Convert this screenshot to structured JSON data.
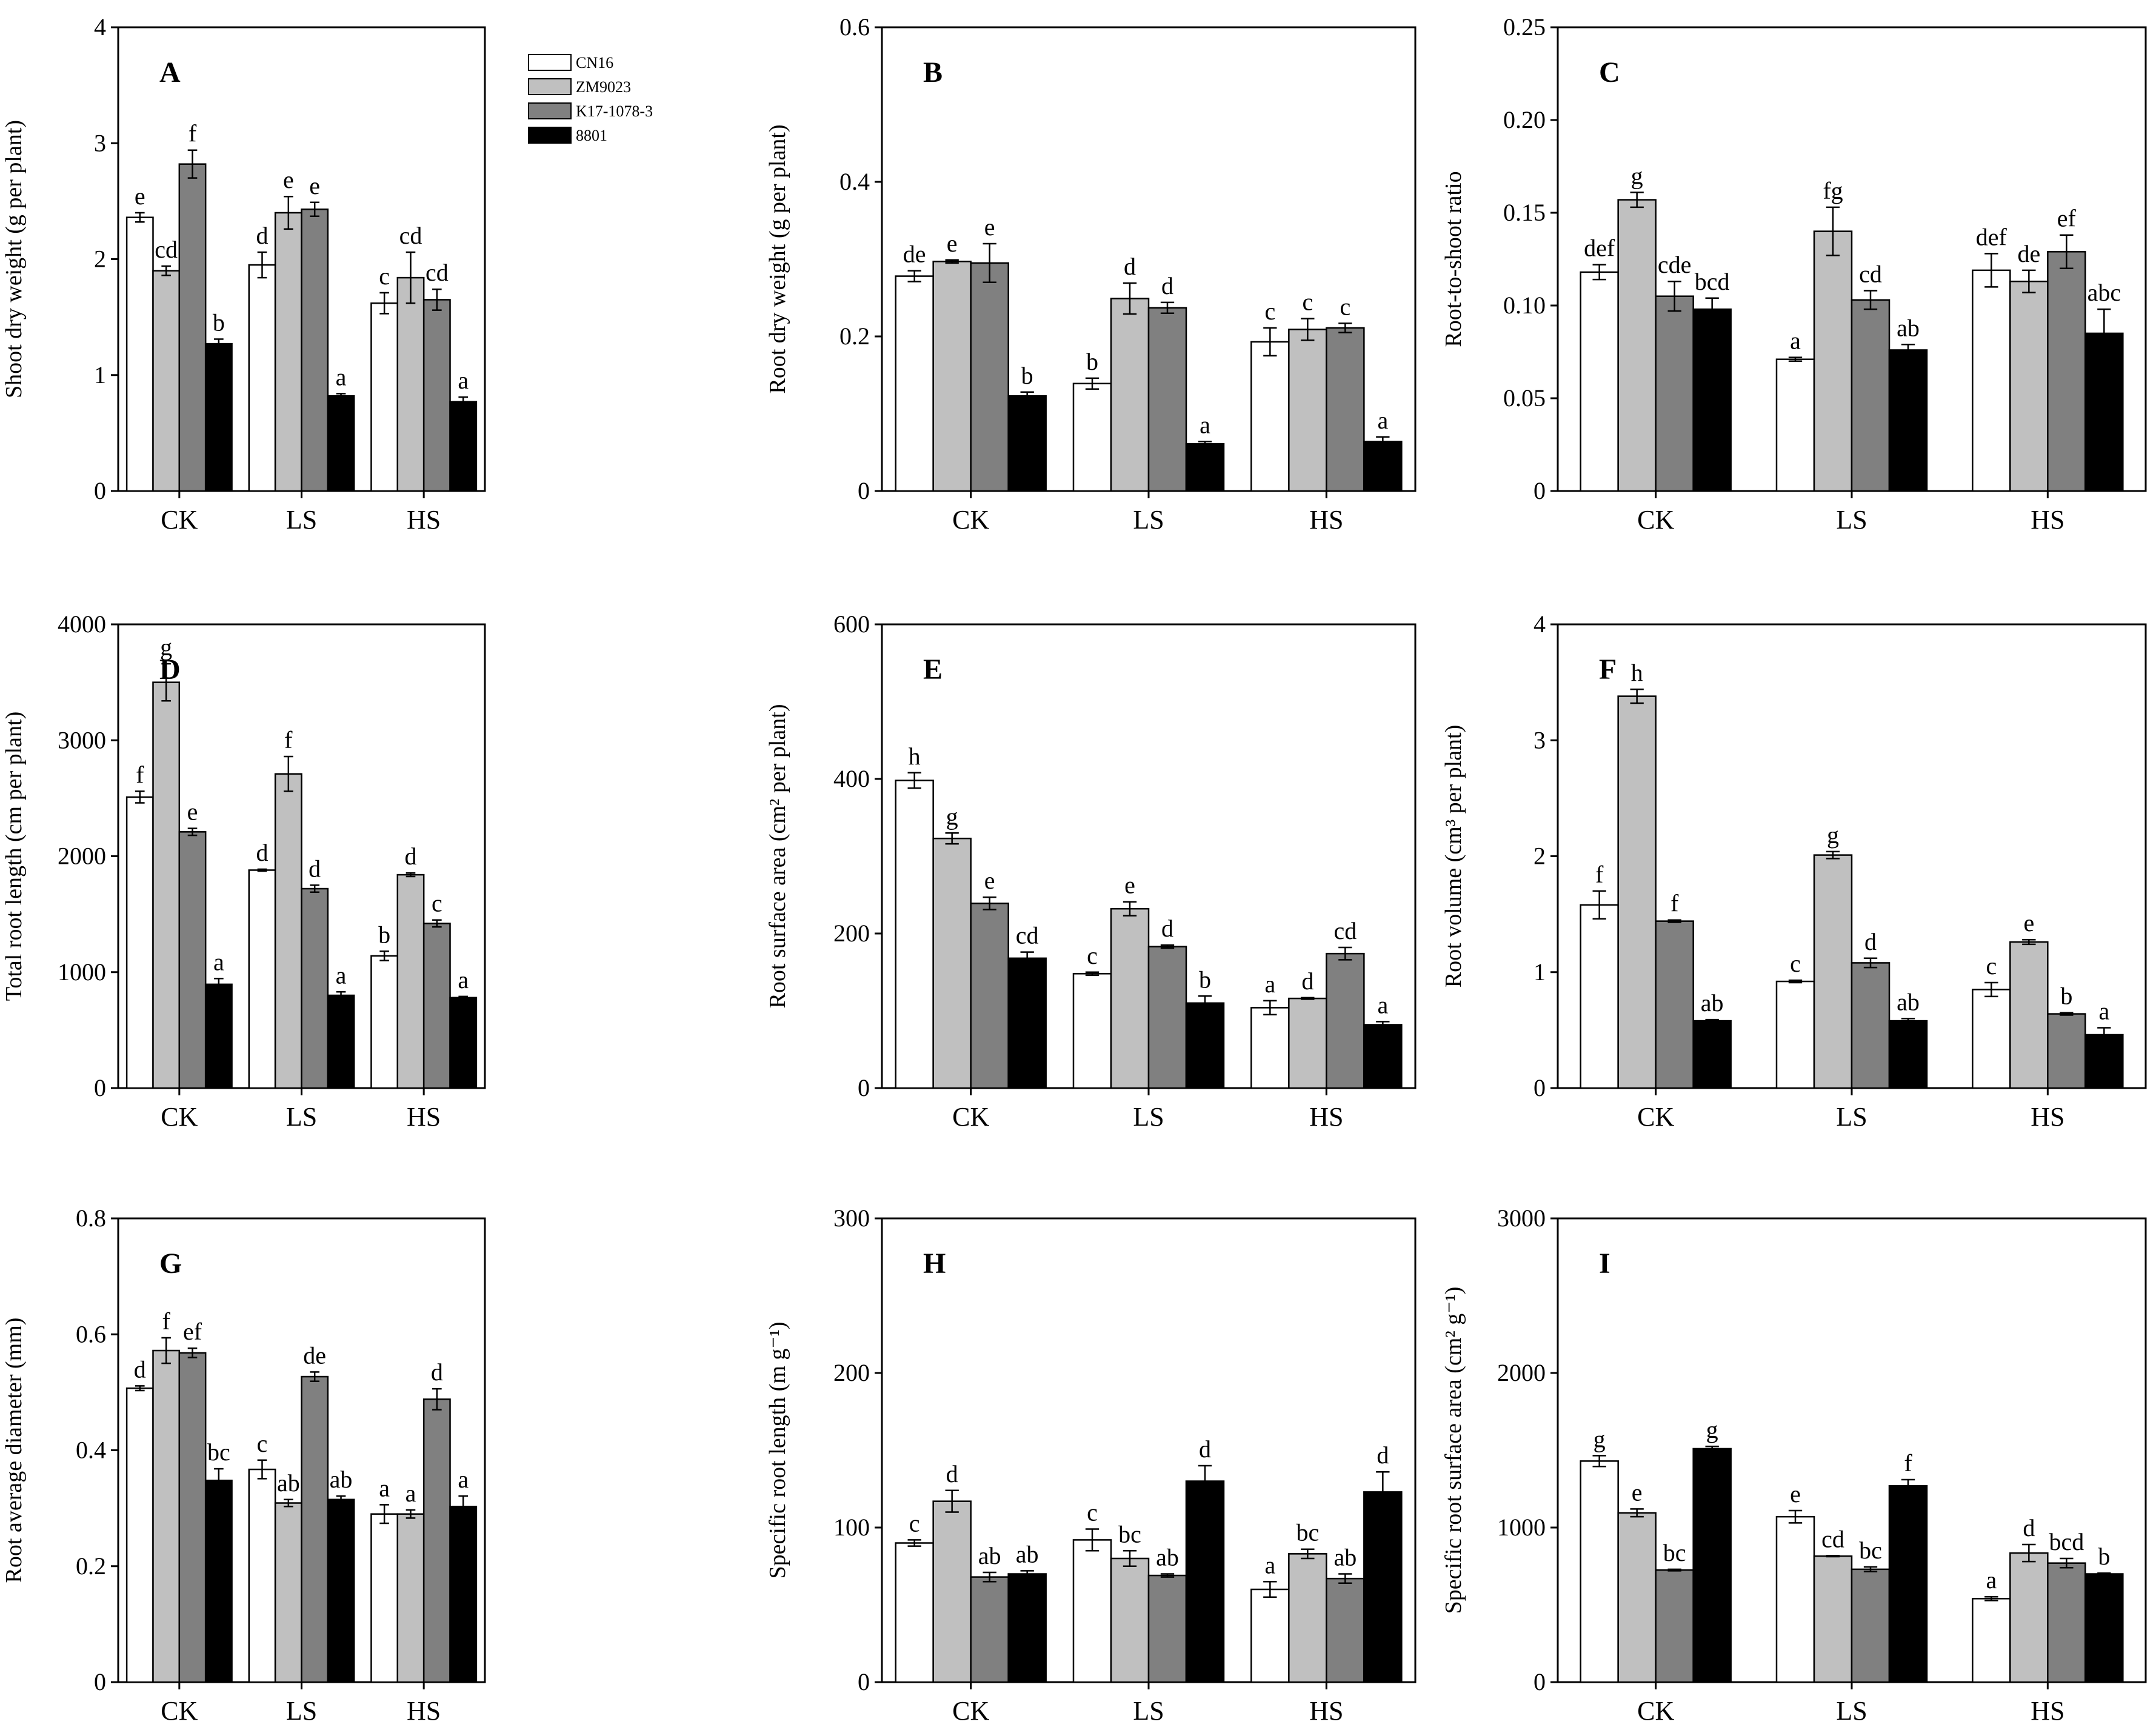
{
  "figure": {
    "legend": [
      "CN16",
      "ZM9023",
      "K17-1078-3",
      "8801"
    ],
    "groups": [
      "CK",
      "LS",
      "HS"
    ]
  },
  "colors": {
    "CN16": "#ffffff",
    "ZM9023": "#c0c0c0",
    "K17-1078-3": "#808080",
    "8801": "#000000",
    "axis": "#000000"
  },
  "chart_data": [
    {
      "panel": "A",
      "type": "bar",
      "ylabel": "Shoot dry weight (g per plant)",
      "ylim": [
        0,
        4
      ],
      "yticks": [
        "0",
        "1",
        "2",
        "3",
        "4"
      ],
      "categories": [
        "CK",
        "LS",
        "HS"
      ],
      "series": [
        {
          "name": "CN16",
          "values": [
            2.36,
            1.95,
            1.62
          ],
          "errors": [
            0.04,
            0.11,
            0.09
          ],
          "letters": [
            "e",
            "d",
            "c"
          ]
        },
        {
          "name": "ZM9023",
          "values": [
            1.9,
            2.4,
            1.84
          ],
          "errors": [
            0.04,
            0.14,
            0.22
          ],
          "letters": [
            "cd",
            "e",
            "cd"
          ]
        },
        {
          "name": "K17-1078-3",
          "values": [
            2.82,
            2.43,
            1.65
          ],
          "errors": [
            0.12,
            0.06,
            0.09
          ],
          "letters": [
            "f",
            "e",
            "cd"
          ]
        },
        {
          "name": "8801",
          "values": [
            1.27,
            0.82,
            0.77
          ],
          "errors": [
            0.04,
            0.02,
            0.04
          ],
          "letters": [
            "b",
            "a",
            "a"
          ]
        }
      ]
    },
    {
      "panel": "B",
      "type": "bar",
      "ylabel": "Root dry weight (g per plant)",
      "ylim": [
        0,
        0.6
      ],
      "yticks": [
        "0",
        "0.2",
        "0.4",
        "0.6"
      ],
      "categories": [
        "CK",
        "LS",
        "HS"
      ],
      "series": [
        {
          "name": "CN16",
          "values": [
            0.278,
            0.139,
            0.193
          ],
          "errors": [
            0.007,
            0.007,
            0.018
          ],
          "letters": [
            "de",
            "b",
            "c"
          ]
        },
        {
          "name": "ZM9023",
          "values": [
            0.297,
            0.249,
            0.209
          ],
          "errors": [
            0.002,
            0.02,
            0.014
          ],
          "letters": [
            "e",
            "d",
            "c"
          ]
        },
        {
          "name": "K17-1078-3",
          "values": [
            0.295,
            0.237,
            0.211
          ],
          "errors": [
            0.025,
            0.007,
            0.006
          ],
          "letters": [
            "e",
            "d",
            "c"
          ]
        },
        {
          "name": "8801",
          "values": [
            0.123,
            0.061,
            0.064
          ],
          "errors": [
            0.005,
            0.003,
            0.006
          ],
          "letters": [
            "b",
            "a",
            "a"
          ]
        }
      ]
    },
    {
      "panel": "C",
      "type": "bar",
      "ylabel": "Root-to-shoot ratio",
      "ylim": [
        0,
        0.25
      ],
      "yticks": [
        "0",
        "0.05",
        "0.10",
        "0.15",
        "0.20",
        "0.25"
      ],
      "categories": [
        "CK",
        "LS",
        "HS"
      ],
      "series": [
        {
          "name": "CN16",
          "values": [
            0.118,
            0.071,
            0.119
          ],
          "errors": [
            0.004,
            0.001,
            0.009
          ],
          "letters": [
            "def",
            "a",
            "def"
          ]
        },
        {
          "name": "ZM9023",
          "values": [
            0.157,
            0.14,
            0.113
          ],
          "errors": [
            0.004,
            0.013,
            0.006
          ],
          "letters": [
            "g",
            "fg",
            "de"
          ]
        },
        {
          "name": "K17-1078-3",
          "values": [
            0.105,
            0.103,
            0.129
          ],
          "errors": [
            0.008,
            0.005,
            0.009
          ],
          "letters": [
            "cde",
            "cd",
            "ef"
          ]
        },
        {
          "name": "8801",
          "values": [
            0.098,
            0.076,
            0.085
          ],
          "errors": [
            0.006,
            0.003,
            0.013
          ],
          "letters": [
            "bcd",
            "ab",
            "abc"
          ]
        }
      ]
    },
    {
      "panel": "D",
      "type": "bar",
      "ylabel": "Total root length (cm per plant)",
      "ylim": [
        0,
        4000
      ],
      "yticks": [
        "0",
        "1000",
        "2000",
        "3000",
        "4000"
      ],
      "categories": [
        "CK",
        "LS",
        "HS"
      ],
      "series": [
        {
          "name": "CN16",
          "values": [
            2510,
            1880,
            1140
          ],
          "errors": [
            50,
            8,
            40
          ],
          "letters": [
            "f",
            "d",
            "b"
          ]
        },
        {
          "name": "ZM9023",
          "values": [
            3500,
            2710,
            1840
          ],
          "errors": [
            160,
            150,
            15
          ],
          "letters": [
            "g",
            "f",
            "d"
          ]
        },
        {
          "name": "K17-1078-3",
          "values": [
            2210,
            1720,
            1420
          ],
          "errors": [
            30,
            30,
            30
          ],
          "letters": [
            "e",
            "d",
            "c"
          ]
        },
        {
          "name": "8801",
          "values": [
            895,
            800,
            780
          ],
          "errors": [
            50,
            30,
            10
          ],
          "letters": [
            "a",
            "a",
            "a"
          ]
        }
      ]
    },
    {
      "panel": "E",
      "type": "bar",
      "ylabel": "Root surface area (cm² per plant)",
      "ylim": [
        0,
        600
      ],
      "yticks": [
        "0",
        "200",
        "400",
        "600"
      ],
      "categories": [
        "CK",
        "LS",
        "HS"
      ],
      "series": [
        {
          "name": "CN16",
          "values": [
            398,
            148,
            104
          ],
          "errors": [
            10,
            2,
            9
          ],
          "letters": [
            "h",
            "c",
            "a"
          ]
        },
        {
          "name": "ZM9023",
          "values": [
            323,
            232,
            116
          ],
          "errors": [
            7,
            9,
            1
          ],
          "letters": [
            "g",
            "e",
            "d"
          ]
        },
        {
          "name": "K17-1078-3",
          "values": [
            239,
            183,
            174
          ],
          "errors": [
            8,
            2,
            8
          ],
          "letters": [
            "e",
            "d",
            "cd"
          ]
        },
        {
          "name": "8801",
          "values": [
            168,
            110,
            82
          ],
          "errors": [
            8,
            9,
            4
          ],
          "letters": [
            "cd",
            "b",
            "a"
          ]
        }
      ]
    },
    {
      "panel": "F",
      "type": "bar",
      "ylabel": "Root volume (cm³ per plant)",
      "ylim": [
        0,
        4
      ],
      "yticks": [
        "0",
        "1",
        "2",
        "3",
        "4"
      ],
      "categories": [
        "CK",
        "LS",
        "HS"
      ],
      "series": [
        {
          "name": "CN16",
          "values": [
            1.58,
            0.92,
            0.85
          ],
          "errors": [
            0.12,
            0.01,
            0.06
          ],
          "letters": [
            "f",
            "c",
            "c"
          ]
        },
        {
          "name": "ZM9023",
          "values": [
            3.38,
            2.01,
            1.26
          ],
          "errors": [
            0.06,
            0.03,
            0.02
          ],
          "letters": [
            "h",
            "g",
            "e"
          ]
        },
        {
          "name": "K17-1078-3",
          "values": [
            1.44,
            1.08,
            0.64
          ],
          "errors": [
            0.01,
            0.04,
            0.01
          ],
          "letters": [
            "f",
            "d",
            "b"
          ]
        },
        {
          "name": "8801",
          "values": [
            0.58,
            0.58,
            0.46
          ],
          "errors": [
            0.01,
            0.02,
            0.06
          ],
          "letters": [
            "ab",
            "ab",
            "a"
          ]
        }
      ]
    },
    {
      "panel": "G",
      "type": "bar",
      "ylabel": "Root average diameter (mm)",
      "ylim": [
        0,
        0.8
      ],
      "yticks": [
        "0",
        "0.2",
        "0.4",
        "0.6",
        "0.8"
      ],
      "categories": [
        "CK",
        "LS",
        "HS"
      ],
      "series": [
        {
          "name": "CN16",
          "values": [
            0.507,
            0.367,
            0.29
          ],
          "errors": [
            0.004,
            0.016,
            0.016
          ],
          "letters": [
            "d",
            "c",
            "a"
          ]
        },
        {
          "name": "ZM9023",
          "values": [
            0.572,
            0.309,
            0.29
          ],
          "errors": [
            0.022,
            0.006,
            0.007
          ],
          "letters": [
            "f",
            "ab",
            "a"
          ]
        },
        {
          "name": "K17-1078-3",
          "values": [
            0.568,
            0.527,
            0.488
          ],
          "errors": [
            0.008,
            0.008,
            0.018
          ],
          "letters": [
            "ef",
            "de",
            "d"
          ]
        },
        {
          "name": "8801",
          "values": [
            0.348,
            0.315,
            0.303
          ],
          "errors": [
            0.02,
            0.006,
            0.018
          ],
          "letters": [
            "bc",
            "ab",
            "a"
          ]
        }
      ]
    },
    {
      "panel": "H",
      "type": "bar",
      "ylabel": "Specific root length (m g⁻¹)",
      "ylim": [
        0,
        300
      ],
      "yticks": [
        "0",
        "100",
        "200",
        "300"
      ],
      "categories": [
        "CK",
        "LS",
        "HS"
      ],
      "series": [
        {
          "name": "CN16",
          "values": [
            90,
            92,
            60
          ],
          "errors": [
            2,
            7,
            5
          ],
          "letters": [
            "c",
            "c",
            "a"
          ]
        },
        {
          "name": "ZM9023",
          "values": [
            117,
            80,
            83
          ],
          "errors": [
            7,
            5,
            3
          ],
          "letters": [
            "d",
            "bc",
            "bc"
          ]
        },
        {
          "name": "K17-1078-3",
          "values": [
            68,
            69,
            67
          ],
          "errors": [
            3,
            1,
            3
          ],
          "letters": [
            "ab",
            "ab",
            "ab"
          ]
        },
        {
          "name": "8801",
          "values": [
            70,
            130,
            123
          ],
          "errors": [
            2,
            10,
            13
          ],
          "letters": [
            "ab",
            "d",
            "d"
          ]
        }
      ]
    },
    {
      "panel": "I",
      "type": "bar",
      "ylabel": "Specific root surface area (cm² g⁻¹)",
      "ylim": [
        0,
        3000
      ],
      "yticks": [
        "0",
        "1000",
        "2000",
        "3000"
      ],
      "categories": [
        "CK",
        "LS",
        "HS"
      ],
      "series": [
        {
          "name": "CN16",
          "values": [
            1430,
            1070,
            540
          ],
          "errors": [
            35,
            40,
            12
          ],
          "letters": [
            "g",
            "e",
            "a"
          ]
        },
        {
          "name": "ZM9023",
          "values": [
            1095,
            815,
            835
          ],
          "errors": [
            25,
            3,
            55
          ],
          "letters": [
            "e",
            "cd",
            "d"
          ]
        },
        {
          "name": "K17-1078-3",
          "values": [
            725,
            730,
            770
          ],
          "errors": [
            5,
            15,
            30
          ],
          "letters": [
            "bc",
            "bc",
            "bcd"
          ]
        },
        {
          "name": "8801",
          "values": [
            1510,
            1270,
            700
          ],
          "errors": [
            15,
            40,
            5
          ],
          "letters": [
            "g",
            "f",
            "b"
          ]
        }
      ]
    }
  ]
}
